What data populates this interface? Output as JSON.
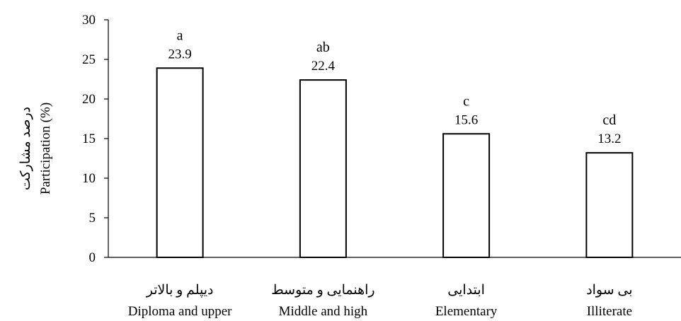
{
  "chart_data": {
    "type": "bar",
    "categories": [
      {
        "fa": "دیپلم و بالاتر",
        "en": "Diploma and upper"
      },
      {
        "fa": "راهنمایی و متوسط",
        "en": "Middle and high"
      },
      {
        "fa": "ابتدایی",
        "en": "Elementary"
      },
      {
        "fa": "بی سواد",
        "en": "Illiterate"
      }
    ],
    "values": [
      23.9,
      22.4,
      15.6,
      13.2
    ],
    "significance_letters": [
      "a",
      "ab",
      "c",
      "cd"
    ],
    "ylabel_fa": "درصد مشارکت",
    "ylabel_en": "Participation (%)",
    "ylim": [
      0,
      30
    ],
    "yticks": [
      0,
      5,
      10,
      15,
      20,
      25,
      30
    ],
    "grid": false,
    "legend": "none",
    "bar_fill": "#ffffff",
    "bar_stroke": "#000000"
  }
}
